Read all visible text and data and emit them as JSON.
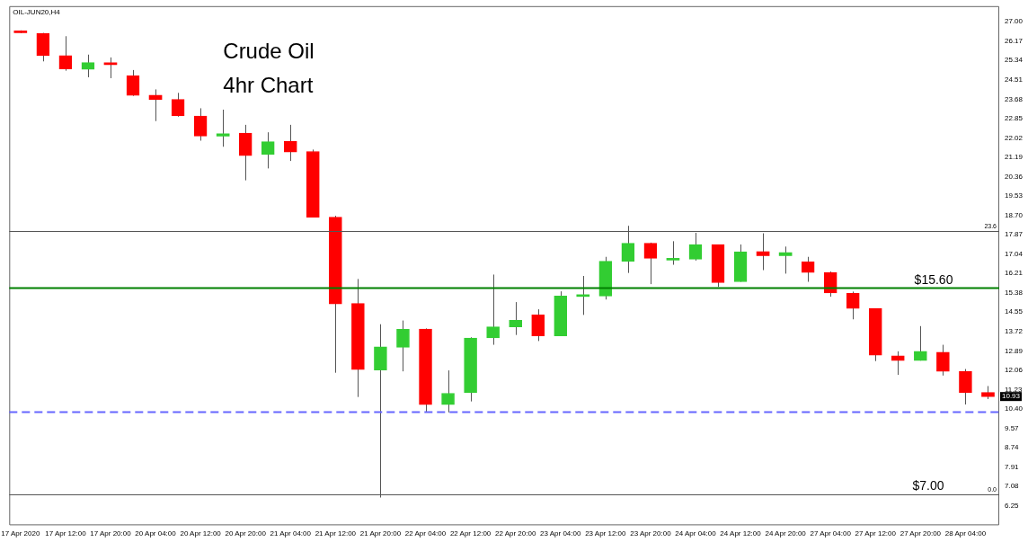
{
  "chart_data": {
    "type": "candlestick",
    "title": "Crude Oil",
    "subtitle": "4hr Chart",
    "categories": [
      "17 Apr 2020",
      null,
      "17 Apr 12:00",
      null,
      "17 Apr 20:00",
      null,
      "20 Apr 04:00",
      null,
      "20 Apr 12:00",
      null,
      "20 Apr 20:00",
      null,
      "21 Apr 04:00",
      null,
      "21 Apr 12:00",
      null,
      "21 Apr 20:00",
      null,
      "22 Apr 04:00",
      null,
      "22 Apr 12:00",
      null,
      "22 Apr 20:00",
      null,
      "23 Apr 04:00",
      null,
      "23 Apr 12:00",
      null,
      "23 Apr 20:00",
      null,
      "24 Apr 04:00",
      null,
      "24 Apr 12:00",
      null,
      "24 Apr 20:00",
      null,
      "27 Apr 04:00",
      null,
      "27 Apr 12:00",
      null,
      "27 Apr 20:00",
      null,
      "28 Apr 04:00",
      null
    ],
    "ohlc": [
      [
        26.61,
        26.63,
        26.51,
        26.53
      ],
      [
        26.5,
        26.52,
        25.3,
        25.55
      ],
      [
        25.55,
        26.38,
        24.9,
        24.98
      ],
      [
        24.96,
        25.59,
        24.62,
        25.25
      ],
      [
        25.21,
        25.47,
        24.58,
        25.16
      ],
      [
        24.68,
        24.93,
        23.82,
        23.84
      ],
      [
        23.84,
        24.1,
        22.74,
        23.67
      ],
      [
        23.67,
        23.95,
        22.93,
        22.96
      ],
      [
        22.96,
        23.29,
        21.9,
        22.1
      ],
      [
        22.1,
        23.23,
        21.64,
        22.2
      ],
      [
        22.23,
        22.58,
        20.2,
        21.26
      ],
      [
        21.31,
        22.26,
        20.71,
        21.86
      ],
      [
        21.88,
        22.58,
        21.03,
        21.41
      ],
      [
        21.44,
        21.52,
        18.62,
        18.62
      ],
      [
        18.62,
        18.68,
        11.95,
        14.9
      ],
      [
        14.92,
        15.97,
        10.91,
        12.09
      ],
      [
        12.07,
        14.03,
        6.6,
        13.06
      ],
      [
        13.04,
        14.19,
        12.01,
        13.81
      ],
      [
        13.82,
        13.85,
        10.27,
        10.58
      ],
      [
        10.58,
        12.05,
        10.25,
        11.07
      ],
      [
        11.1,
        13.47,
        10.72,
        13.44
      ],
      [
        13.44,
        16.16,
        13.15,
        13.92
      ],
      [
        13.92,
        14.98,
        13.57,
        14.2
      ],
      [
        14.43,
        14.67,
        13.31,
        13.53
      ],
      [
        13.53,
        15.44,
        13.53,
        15.24
      ],
      [
        15.22,
        16.1,
        14.43,
        15.23
      ],
      [
        15.24,
        16.92,
        15.09,
        16.73
      ],
      [
        16.73,
        18.25,
        16.23,
        17.5
      ],
      [
        17.5,
        17.53,
        15.75,
        16.86
      ],
      [
        16.78,
        17.59,
        16.58,
        16.79
      ],
      [
        16.82,
        17.95,
        16.76,
        17.45
      ],
      [
        17.45,
        17.45,
        15.63,
        15.81
      ],
      [
        15.85,
        17.45,
        15.85,
        17.14
      ],
      [
        17.14,
        17.93,
        16.35,
        16.97
      ],
      [
        16.97,
        17.36,
        16.2,
        17.1
      ],
      [
        16.7,
        16.92,
        15.85,
        16.25
      ],
      [
        16.25,
        16.29,
        15.21,
        15.37
      ],
      [
        15.36,
        15.43,
        14.24,
        14.71
      ],
      [
        14.71,
        14.71,
        12.45,
        12.7
      ],
      [
        12.68,
        12.87,
        11.86,
        12.47
      ],
      [
        12.47,
        13.95,
        12.47,
        12.87
      ],
      [
        12.83,
        13.15,
        11.83,
        12.01
      ],
      [
        12.01,
        12.11,
        10.59,
        11.1
      ],
      [
        11.1,
        11.38,
        10.82,
        10.93
      ]
    ],
    "colors": [
      "#ff0000",
      "#ff0000",
      "#ff0000",
      "#32cd32",
      "#ff0000",
      "#ff0000",
      "#ff0000",
      "#ff0000",
      "#ff0000",
      "#32cd32",
      "#ff0000",
      "#32cd32",
      "#ff0000",
      "#ff0000",
      "#ff0000",
      "#ff0000",
      "#32cd32",
      "#32cd32",
      "#ff0000",
      "#32cd32",
      "#32cd32",
      "#32cd32",
      "#32cd32",
      "#ff0000",
      "#32cd32",
      "#32cd32",
      "#32cd32",
      "#32cd32",
      "#ff0000",
      "#32cd32",
      "#32cd32",
      "#ff0000",
      "#32cd32",
      "#ff0000",
      "#32cd32",
      "#ff0000",
      "#ff0000",
      "#ff0000",
      "#ff0000",
      "#ff0000",
      "#32cd32",
      "#ff0000",
      "#ff0000",
      "#ff0000"
    ],
    "value_labels": [
      null,
      null,
      null,
      null,
      null,
      null,
      null,
      null,
      null,
      null,
      null,
      null,
      null,
      null,
      null,
      null,
      null,
      null,
      null,
      null,
      null,
      null,
      null,
      null,
      null,
      null,
      null,
      null,
      null,
      null,
      null,
      null,
      null,
      null,
      null,
      null,
      null,
      null,
      null,
      null,
      null,
      null,
      null,
      "10.93"
    ],
    "ylim": [
      5.41,
      27.67
    ],
    "yticks": [
      {
        "value": 27,
        "label": "27.00"
      },
      26.17,
      25.34,
      24.51,
      23.68,
      22.85,
      22.02,
      21.19,
      20.36,
      19.53,
      {
        "value": 18.7,
        "label": "18.70"
      },
      17.87,
      17.04,
      16.21,
      15.38,
      14.55,
      13.72,
      12.89,
      12.06,
      11.23,
      {
        "value": 10.4,
        "label": "10.40"
      },
      9.57,
      8.74,
      7.91,
      7.08,
      6.25
    ],
    "ref_lines": [
      {
        "axis": "y",
        "value": 18.02
      },
      {
        "axis": "y",
        "value": 6.74
      },
      {
        "axis": "y",
        "value": 15.6,
        "label": "$15.60",
        "color": "#008000"
      },
      {
        "axis": "y",
        "value": 10.27,
        "color": "#6666ff",
        "line_style": "dashed"
      }
    ],
    "annotations": [
      "OIL-JUN20,H4",
      {
        "text": "23.6",
        "y": 18.02
      },
      {
        "text": "0.0",
        "y": 6.74
      },
      "$7.00"
    ],
    "grid": false,
    "legend": false
  }
}
